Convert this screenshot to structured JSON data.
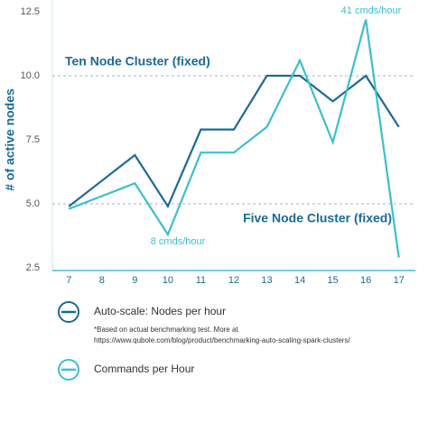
{
  "chart_data": {
    "type": "line",
    "ylabel": "# of active nodes",
    "x": [
      7,
      8,
      9,
      10,
      11,
      12,
      13,
      14,
      15,
      16,
      17
    ],
    "xlim": [
      6.5,
      17.5
    ],
    "xticks": [
      7,
      8,
      9,
      10,
      11,
      12,
      13,
      14,
      15,
      16,
      17
    ],
    "ylim": [
      2.5,
      12.5
    ],
    "yticks": [
      2.5,
      {
        "value": 5,
        "label": "5.0"
      },
      7.5,
      {
        "value": 10,
        "label": "10.0"
      },
      12.5
    ],
    "series": [
      {
        "name": "Auto-scale: Nodes per hour",
        "color": "#1b6a96",
        "values": [
          4.9,
          5.9,
          6.9,
          4.9,
          7.9,
          7.9,
          10.0,
          10.0,
          9.0,
          10.0,
          8.0
        ]
      },
      {
        "name": "Commands per Hour",
        "color": "#3dbfcc",
        "values": [
          4.8,
          5.3,
          5.8,
          3.8,
          7.0,
          7.0,
          8.0,
          10.6,
          7.4,
          12.2,
          2.9
        ]
      }
    ],
    "reference_lines": [
      {
        "value": 10,
        "label": "Ten Node Cluster (fixed)"
      },
      {
        "value": 5,
        "label": "Five Node Cluster (fixed)"
      }
    ],
    "annotations": [
      "41 cmds/hour",
      "8 cmds/hour"
    ],
    "footnote": [
      "*Based on actual benchmarking test. More at",
      "https://www.qubole.com/blog/product/benchmarking-auto-scaling-spark-clusters/"
    ]
  }
}
